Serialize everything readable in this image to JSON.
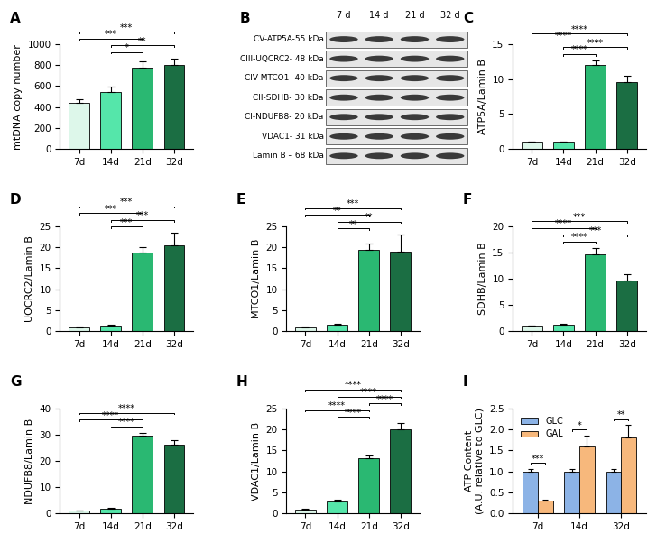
{
  "chart_data": [
    {
      "panel": "A",
      "type": "bar",
      "categories": [
        "7d",
        "14d",
        "21d",
        "32d"
      ],
      "values": [
        440,
        540,
        780,
        805
      ],
      "errors": [
        35,
        55,
        55,
        60
      ],
      "colors": [
        "#ddf7ea",
        "#55e6aa",
        "#2ab872",
        "#1b6e43"
      ],
      "y_label": "mtDNA copy number",
      "ylim": [
        0,
        1000
      ],
      "yticks": [
        0,
        200,
        400,
        600,
        800,
        1000
      ],
      "annotations": [
        {
          "from": "14d",
          "to": "21d",
          "label": "*"
        },
        {
          "from": "14d",
          "to": "32d",
          "label": "**"
        },
        {
          "from": "7d",
          "to": "21d",
          "label": "***"
        },
        {
          "from": "7d",
          "to": "32d",
          "label": "***"
        }
      ]
    },
    {
      "panel": "C",
      "type": "bar",
      "categories": [
        "7d",
        "14d",
        "21d",
        "32d"
      ],
      "values": [
        1,
        1,
        12,
        9.6
      ],
      "errors": [
        0.05,
        0.08,
        0.7,
        0.9
      ],
      "colors": [
        "#ddf7ea",
        "#55e6aa",
        "#2ab872",
        "#1b6e43"
      ],
      "y_label": "ATP5A/Lamin B",
      "ylim": [
        0,
        15
      ],
      "yticks": [
        0,
        5,
        10,
        15
      ],
      "annotations": [
        {
          "from": "14d",
          "to": "21d",
          "label": "****"
        },
        {
          "from": "14d",
          "to": "32d",
          "label": "****"
        },
        {
          "from": "7d",
          "to": "21d",
          "label": "****"
        },
        {
          "from": "7d",
          "to": "32d",
          "label": "****"
        }
      ]
    },
    {
      "panel": "D",
      "type": "bar",
      "categories": [
        "7d",
        "14d",
        "21d",
        "32d"
      ],
      "values": [
        1,
        1.3,
        18.8,
        20.4
      ],
      "errors": [
        0.1,
        0.3,
        1.3,
        3
      ],
      "colors": [
        "#ddf7ea",
        "#55e6aa",
        "#2ab872",
        "#1b6e43"
      ],
      "y_label": "UQCRC2/Lamin B",
      "ylim": [
        0,
        25
      ],
      "yticks": [
        0,
        5,
        10,
        15,
        20,
        25
      ],
      "annotations": [
        {
          "from": "14d",
          "to": "21d",
          "label": "***"
        },
        {
          "from": "14d",
          "to": "32d",
          "label": "***"
        },
        {
          "from": "7d",
          "to": "21d",
          "label": "***"
        },
        {
          "from": "7d",
          "to": "32d",
          "label": "***"
        }
      ]
    },
    {
      "panel": "E",
      "type": "bar",
      "categories": [
        "7d",
        "14d",
        "21d",
        "32d"
      ],
      "values": [
        1,
        1.6,
        19.5,
        19
      ],
      "errors": [
        0.1,
        0.1,
        1.5,
        4
      ],
      "colors": [
        "#ddf7ea",
        "#55e6aa",
        "#2ab872",
        "#1b6e43"
      ],
      "y_label": "MTCO1/Lamin B",
      "ylim": [
        0,
        25
      ],
      "yticks": [
        0,
        5,
        10,
        15,
        20,
        25
      ],
      "annotations": [
        {
          "from": "14d",
          "to": "21d",
          "label": "**"
        },
        {
          "from": "14d",
          "to": "32d",
          "label": "**"
        },
        {
          "from": "7d",
          "to": "21d",
          "label": "**"
        },
        {
          "from": "7d",
          "to": "32d",
          "label": "***"
        }
      ]
    },
    {
      "panel": "F",
      "type": "bar",
      "categories": [
        "7d",
        "14d",
        "21d",
        "32d"
      ],
      "values": [
        1,
        1.2,
        14.7,
        9.6
      ],
      "errors": [
        0.1,
        0.15,
        1.2,
        1.3
      ],
      "colors": [
        "#ddf7ea",
        "#55e6aa",
        "#2ab872",
        "#1b6e43"
      ],
      "y_label": "SDHB/Lamin B",
      "ylim": [
        0,
        20
      ],
      "yticks": [
        0,
        5,
        10,
        15,
        20
      ],
      "annotations": [
        {
          "from": "14d",
          "to": "21d",
          "label": "****"
        },
        {
          "from": "14d",
          "to": "32d",
          "label": "***"
        },
        {
          "from": "7d",
          "to": "21d",
          "label": "****"
        },
        {
          "from": "7d",
          "to": "32d",
          "label": "***"
        }
      ]
    },
    {
      "panel": "G",
      "type": "bar",
      "categories": [
        "7d",
        "14d",
        "21d",
        "32d"
      ],
      "values": [
        1,
        1.8,
        29.8,
        26.2
      ],
      "errors": [
        0.1,
        0.2,
        1,
        1.8
      ],
      "colors": [
        "#ddf7ea",
        "#55e6aa",
        "#2ab872",
        "#1b6e43"
      ],
      "y_label": "NDUFB8/Lamin B",
      "ylim": [
        0,
        40
      ],
      "yticks": [
        0,
        10,
        20,
        30,
        40
      ],
      "annotations": [
        {
          "from": "14d",
          "to": "21d",
          "label": "****"
        },
        {
          "from": "7d",
          "to": "21d",
          "label": "****"
        },
        {
          "from": "7d",
          "to": "32d",
          "label": "****"
        }
      ]
    },
    {
      "panel": "H",
      "type": "bar",
      "categories": [
        "7d",
        "14d",
        "21d",
        "32d"
      ],
      "values": [
        1,
        2.9,
        13.2,
        20
      ],
      "errors": [
        0.1,
        0.3,
        0.7,
        1.5
      ],
      "colors": [
        "#ddf7ea",
        "#55e6aa",
        "#2ab872",
        "#1b6e43"
      ],
      "y_label": "VDAC1/Lamin B",
      "ylim": [
        0,
        25
      ],
      "yticks": [
        0,
        5,
        10,
        15,
        20,
        25
      ],
      "annotations": [
        {
          "from": "14d",
          "to": "21d",
          "label": "****"
        },
        {
          "from": "7d",
          "to": "21d",
          "label": "****"
        },
        {
          "from": "21d",
          "to": "32d",
          "label": "****"
        },
        {
          "from": "14d",
          "to": "32d",
          "label": "****"
        },
        {
          "from": "7d",
          "to": "32d",
          "label": "****"
        }
      ]
    },
    {
      "panel": "I",
      "type": "grouped_bar",
      "categories": [
        "7d",
        "14d",
        "32d"
      ],
      "series": [
        {
          "name": "GLC",
          "color": "#8cb3e6",
          "values": [
            1,
            1,
            1
          ],
          "errors": [
            0.05,
            0.05,
            0.06
          ]
        },
        {
          "name": "GAL",
          "color": "#f7b87c",
          "values": [
            0.3,
            1.6,
            1.8
          ],
          "errors": [
            0.03,
            0.25,
            0.3
          ]
        }
      ],
      "y_label": "ATP Content\n(A.U. relative to GLC)",
      "ylim": [
        0,
        2.5
      ],
      "yticks": [
        {
          "value": 0,
          "label": "0.0"
        },
        {
          "value": 0.5,
          "label": "0.5"
        },
        {
          "value": 1,
          "label": "1.0"
        },
        {
          "value": 1.5,
          "label": "1.5"
        },
        {
          "value": 2,
          "label": "2.0"
        },
        {
          "value": 2.5,
          "label": "2.5"
        }
      ],
      "legend": "upper left",
      "annotations": [
        {
          "category": "7d",
          "label": "***"
        },
        {
          "category": "14d",
          "label": "*"
        },
        {
          "category": "32d",
          "label": "**"
        }
      ]
    }
  ],
  "blot": {
    "panel": "B",
    "lanes": [
      "7 d",
      "14 d",
      "21 d",
      "32 d"
    ],
    "rows": [
      "CV-ATP5A-55 kDa",
      "CIII-UQCRC2- 48 kDa",
      "CIV-MTCO1- 40 kDa",
      "CII-SDHB- 30 kDa",
      "CI-NDUFB8- 20 kDa",
      "VDAC1- 31 kDa",
      "Lamin B – 68 kDa"
    ]
  }
}
